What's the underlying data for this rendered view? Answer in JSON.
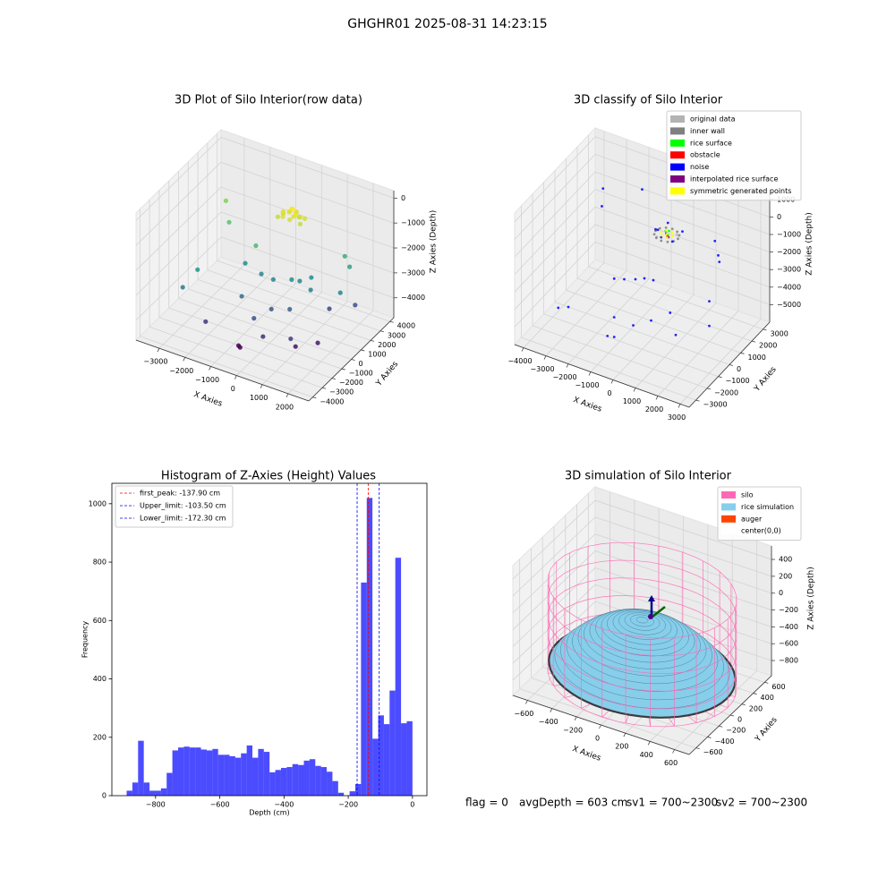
{
  "title": "GHGHR01 2025-08-31 14:23:15",
  "chart_data": [
    {
      "type": "scatter3d",
      "title": "3D Plot of Silo Interior(row data)",
      "xlabel": "X Axies",
      "ylabel": "Y Axies",
      "zlabel": "Z Axies (Depth)",
      "xlim": [
        -3900,
        2800
      ],
      "ylim": [
        -4400,
        4400
      ],
      "zlim": [
        -4800,
        300
      ],
      "xticks": [
        {
          "value": -3000,
          "label": "−3000"
        },
        {
          "value": -2000,
          "label": "−2000"
        },
        {
          "value": -1000,
          "label": "−1000"
        },
        0,
        1000,
        2000
      ],
      "yticks": [
        {
          "value": -4000,
          "label": "−4000"
        },
        {
          "value": -3000,
          "label": "−3000"
        },
        {
          "value": -2000,
          "label": "−2000"
        },
        {
          "value": -1000,
          "label": "−1000"
        },
        0,
        1000,
        2000,
        3000,
        4000
      ],
      "zticks": [
        {
          "value": -4000,
          "label": "−4000"
        },
        {
          "value": -3000,
          "label": "−3000"
        },
        {
          "value": -2000,
          "label": "−2000"
        },
        {
          "value": -1000,
          "label": "−1000"
        },
        0
      ],
      "colormap": "viridis",
      "series": [
        {
          "x": [
            -600,
            -400,
            -200,
            -500,
            -300,
            0,
            -700,
            -100,
            -450,
            -250,
            -550,
            100,
            -350,
            -650,
            -150,
            -800,
            50,
            -300,
            -3000,
            -2500,
            -1200,
            1500,
            1800,
            2000,
            -2600,
            -1500,
            -800,
            -300,
            300,
            800,
            1000,
            500,
            -2800,
            -1000,
            0,
            600,
            -300,
            1200,
            -1800,
            200,
            1500,
            -600,
            -500,
            1200,
            2200,
            1800
          ],
          "y": [
            2000,
            2100,
            2300,
            2400,
            1900,
            2200,
            2300,
            2000,
            2500,
            2150,
            1850,
            2400,
            2350,
            2150,
            2450,
            2000,
            2050,
            2600,
            2500,
            1500,
            800,
            2800,
            2500,
            1000,
            -1500,
            500,
            300,
            200,
            500,
            1200,
            600,
            800,
            -2500,
            -1200,
            -800,
            -500,
            -1800,
            -2000,
            -2800,
            -2200,
            1200,
            -2600,
            -2700,
            -1500,
            2000,
            -800
          ],
          "z": [
            -900,
            -850,
            -900,
            -1000,
            -1050,
            -950,
            -1100,
            -800,
            -900,
            -1000,
            -1000,
            -1050,
            -800,
            -950,
            -1100,
            -1150,
            -1150,
            -1000,
            -1500,
            -1800,
            -2000,
            -2200,
            -2400,
            -2800,
            -2600,
            -2700,
            -2800,
            -2800,
            -2700,
            -2700,
            -2900,
            -2800,
            -3000,
            -3200,
            -3500,
            -3400,
            -3600,
            -3800,
            -3900,
            -4000,
            -3700,
            -4500,
            -4500,
            -4300,
            -3600,
            -4200
          ]
        }
      ]
    },
    {
      "type": "scatter3d",
      "title": "3D classify of Silo Interior",
      "xlabel": "X Axies",
      "ylabel": "Y Axies",
      "zlabel": "Z Axies (Depth)",
      "xlim": [
        -4400,
        3400
      ],
      "ylim": [
        -3600,
        3600
      ],
      "zlim": [
        -6000,
        1500
      ],
      "xticks": [
        {
          "value": -4000,
          "label": "−4000"
        },
        {
          "value": -3000,
          "label": "−3000"
        },
        {
          "value": -2000,
          "label": "−2000"
        },
        {
          "value": -1000,
          "label": "−1000"
        },
        0,
        1000,
        2000,
        3000
      ],
      "yticks": [
        {
          "value": -3000,
          "label": "−3000"
        },
        {
          "value": -2000,
          "label": "−2000"
        },
        {
          "value": -1000,
          "label": "−1000"
        },
        0,
        1000,
        2000,
        3000
      ],
      "zticks": [
        {
          "value": -5000,
          "label": "−5000"
        },
        {
          "value": -4000,
          "label": "−4000"
        },
        {
          "value": -3000,
          "label": "−3000"
        },
        {
          "value": -2000,
          "label": "−2000"
        },
        {
          "value": -1000,
          "label": "−1000"
        },
        0,
        1000
      ],
      "legend": "upper right",
      "series": [
        {
          "name": "original data",
          "color": "#b3b3b3",
          "x": [
            -600,
            0
          ],
          "y": [
            1500,
            2100
          ],
          "z": [
            -1550,
            -1550
          ]
        },
        {
          "name": "inner wall",
          "color": "#808080",
          "x": [
            200,
            133,
            -50,
            -300,
            -550,
            -733,
            -800,
            -733,
            -550,
            -300,
            -50,
            133
          ],
          "y": [
            1800,
            2050,
            2233,
            2300,
            2233,
            2050,
            1800,
            1550,
            1367,
            1300,
            1367,
            1550
          ],
          "z": [
            -1500,
            -1500,
            -1500,
            -1500,
            -1500,
            -1500,
            -1500,
            -1500,
            -1500,
            -1500,
            -1500,
            -1500
          ]
        },
        {
          "name": "rice surface",
          "color": "#00ff00",
          "x": [
            -200,
            -400,
            -300
          ],
          "y": [
            1700,
            1900,
            2000
          ],
          "z": [
            -1400,
            -1400,
            -1420
          ]
        },
        {
          "name": "obstacle",
          "color": "#ff0000",
          "x": [
            -250
          ],
          "y": [
            1750
          ],
          "z": [
            -1550
          ]
        },
        {
          "name": "noise",
          "color": "#0000ff",
          "x": [
            -300,
            -700,
            200,
            -500,
            100,
            -900,
            -3500,
            -3200,
            -2000,
            1500,
            1900,
            2200,
            -1500,
            -1200,
            -800,
            -500,
            -200,
            -3000,
            -2800,
            -1000,
            0,
            500,
            1000,
            -800,
            -600,
            1500,
            2500,
            2000
          ],
          "y": [
            1300,
            1800,
            2200,
            2300,
            1500,
            2000,
            2500,
            1800,
            3000,
            2500,
            2000,
            1500,
            -500,
            -200,
            0,
            200,
            400,
            -2500,
            -2000,
            -1500,
            -1800,
            -1200,
            -500,
            -2500,
            -2300,
            -1000,
            0,
            1000
          ],
          "z": [
            -1300,
            -1400,
            -1350,
            -1250,
            -1500,
            -1600,
            -800,
            -1200,
            -500,
            -1500,
            -1800,
            -1700,
            -3000,
            -3100,
            -3050,
            -3000,
            -3100,
            -4000,
            -4200,
            -4300,
            -4100,
            -4000,
            -3800,
            -4600,
            -4700,
            -4500,
            -4200,
            -3700
          ]
        },
        {
          "name": "interpolated rice surface",
          "color": "#800080",
          "x": [
            -350,
            -150
          ],
          "y": [
            1850,
            1650
          ],
          "z": [
            -1480,
            -1470
          ]
        },
        {
          "name": "symmetric generated points",
          "color": "#ffff00",
          "x": [
            -50,
            -175,
            -425,
            -550,
            -425,
            -175,
            -300
          ],
          "y": [
            1800,
            2017,
            2017,
            1800,
            1583,
            1583,
            1800
          ],
          "z": [
            -1450,
            -1450,
            -1450,
            -1450,
            -1450,
            -1450,
            -1450
          ]
        }
      ]
    },
    {
      "type": "histogram",
      "title": "Histogram of Z-Axies (Height) Values",
      "xlabel": "Depth (cm)",
      "ylabel": "Frequency",
      "color": "#0000ff",
      "alpha": 0.7,
      "bins": [
        -890,
        -872.2,
        -854.4,
        -836.6,
        -818.8,
        -801,
        -783.2,
        -765.4,
        -747.6,
        -729.8,
        -712,
        -694.2,
        -676.4,
        -658.6,
        -640.8,
        -623,
        -605.2,
        -587.4,
        -569.6,
        -551.8,
        -534,
        -516.2,
        -498.4,
        -480.6,
        -462.8,
        -445,
        -427.2,
        -409.4,
        -391.6,
        -373.8,
        -356,
        -338.2,
        -320.4,
        -302.6,
        -284.8,
        -267,
        -249.2,
        -231.4,
        -213.6,
        -195.8,
        -178,
        -160.2,
        -142.4,
        -124.6,
        -106.8,
        -89,
        -71.2,
        -53.4,
        -35.6,
        -17.8,
        0
      ],
      "counts": [
        17,
        45,
        188,
        45,
        17,
        17,
        25,
        78,
        155,
        165,
        168,
        165,
        165,
        158,
        155,
        160,
        140,
        140,
        135,
        130,
        145,
        172,
        130,
        160,
        150,
        80,
        88,
        95,
        98,
        108,
        105,
        120,
        125,
        102,
        98,
        82,
        50,
        10,
        0,
        15,
        40,
        730,
        1020,
        195,
        275,
        245,
        360,
        815,
        248,
        255
      ],
      "vlines": [
        {
          "name": "first_peak: -137.90 cm",
          "value": -137.9,
          "color": "#ff0000"
        },
        {
          "name": "Upper_limit: -103.50 cm",
          "value": -103.5,
          "color": "#0000ff"
        },
        {
          "name": "Lower_limit: -172.30 cm",
          "value": -172.3,
          "color": "#0000ff"
        }
      ],
      "legend": "upper left",
      "xlim": [
        -936,
        45
      ],
      "ylim": [
        0,
        1070
      ],
      "xticks": [
        {
          "value": -800,
          "label": "−800"
        },
        {
          "value": -600,
          "label": "−600"
        },
        {
          "value": -400,
          "label": "−400"
        },
        {
          "value": -200,
          "label": "−200"
        },
        0
      ],
      "yticks": [
        0,
        200,
        400,
        600,
        800,
        1000
      ]
    },
    {
      "type": "surface3d",
      "title": "3D simulation of Silo Interior",
      "xlabel": "X Axies",
      "ylabel": "Y Axies",
      "zlabel": "Z Axies (Depth)",
      "xlim": [
        -720,
        720
      ],
      "ylim": [
        -720,
        720
      ],
      "zlim": [
        -980,
        560
      ],
      "xticks": [
        {
          "value": -600,
          "label": "−600"
        },
        {
          "value": -400,
          "label": "−400"
        },
        {
          "value": -200,
          "label": "−200"
        },
        0,
        200,
        400,
        600
      ],
      "yticks": [
        {
          "value": -600,
          "label": "−600"
        },
        {
          "value": -400,
          "label": "−400"
        },
        {
          "value": -200,
          "label": "−200"
        },
        0,
        200,
        400,
        600
      ],
      "zticks": [
        {
          "value": -800,
          "label": "−800"
        },
        {
          "value": -600,
          "label": "−600"
        },
        {
          "value": -400,
          "label": "−400"
        },
        {
          "value": -200,
          "label": "−200"
        },
        0,
        200,
        400
      ],
      "legend": "upper right",
      "series": [
        {
          "name": "silo",
          "color": "#ff69b4",
          "radius": 700,
          "z": [
            -900,
            150
          ]
        },
        {
          "name": "rice simulation",
          "color": "#87ceeb",
          "radius": 690,
          "z": [
            -800,
            -200
          ]
        },
        {
          "name": "auger",
          "color": "#ff4500"
        },
        {
          "name": "center(0,0)",
          "color": "#ffffff"
        }
      ]
    }
  ],
  "footer": [
    "flag = 0",
    "avgDepth = 603 cm",
    "sv1 = 700~2300",
    "sv2 = 700~2300"
  ]
}
